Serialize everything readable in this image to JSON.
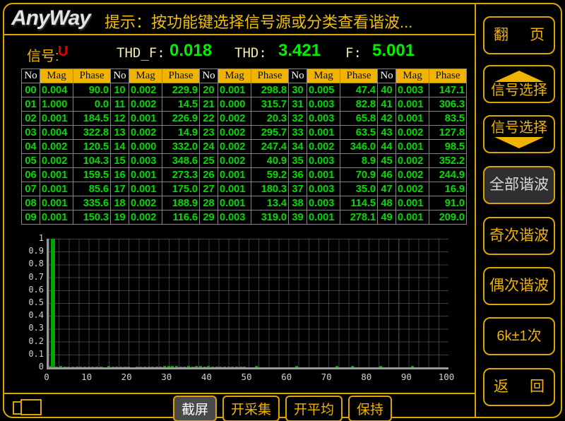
{
  "colors": {
    "accent_yellow": "#d9a606",
    "header_yellow": "#f0b400",
    "table_green": "#00dd00",
    "value_green": "#00ee00",
    "signal_red": "#dd0000",
    "selected_grey": "#2f2f2f",
    "bar_green": "#00a400"
  },
  "header": {
    "logo": "AnyWay",
    "hint": "提示：按功能键选择信号源或分类查看谐波..."
  },
  "signal": {
    "label": "信号:",
    "value": "U",
    "thdf_label": "THD_F:",
    "thdf_value": "0.018",
    "thd_label": "THD:",
    "thd_value": "3.421",
    "f_label": "F:",
    "f_value": "5.001"
  },
  "table": {
    "headers": [
      "No",
      "Mag",
      "Phase"
    ],
    "harmonics": [
      {
        "no": "00",
        "mag": "0.004",
        "phase": "90.0"
      },
      {
        "no": "01",
        "mag": "1.000",
        "phase": "0.0"
      },
      {
        "no": "02",
        "mag": "0.001",
        "phase": "184.5"
      },
      {
        "no": "03",
        "mag": "0.004",
        "phase": "322.8"
      },
      {
        "no": "04",
        "mag": "0.002",
        "phase": "120.5"
      },
      {
        "no": "05",
        "mag": "0.002",
        "phase": "104.3"
      },
      {
        "no": "06",
        "mag": "0.001",
        "phase": "159.5"
      },
      {
        "no": "07",
        "mag": "0.001",
        "phase": "85.6"
      },
      {
        "no": "08",
        "mag": "0.001",
        "phase": "335.6"
      },
      {
        "no": "09",
        "mag": "0.001",
        "phase": "150.3"
      },
      {
        "no": "10",
        "mag": "0.002",
        "phase": "229.9"
      },
      {
        "no": "11",
        "mag": "0.002",
        "phase": "14.5"
      },
      {
        "no": "12",
        "mag": "0.001",
        "phase": "226.9"
      },
      {
        "no": "13",
        "mag": "0.002",
        "phase": "14.9"
      },
      {
        "no": "14",
        "mag": "0.000",
        "phase": "332.0"
      },
      {
        "no": "15",
        "mag": "0.003",
        "phase": "348.6"
      },
      {
        "no": "16",
        "mag": "0.001",
        "phase": "273.3"
      },
      {
        "no": "17",
        "mag": "0.001",
        "phase": "175.0"
      },
      {
        "no": "18",
        "mag": "0.002",
        "phase": "188.9"
      },
      {
        "no": "19",
        "mag": "0.002",
        "phase": "116.6"
      },
      {
        "no": "20",
        "mag": "0.001",
        "phase": "298.8"
      },
      {
        "no": "21",
        "mag": "0.000",
        "phase": "315.7"
      },
      {
        "no": "22",
        "mag": "0.002",
        "phase": "20.3"
      },
      {
        "no": "23",
        "mag": "0.002",
        "phase": "295.7"
      },
      {
        "no": "24",
        "mag": "0.002",
        "phase": "247.4"
      },
      {
        "no": "25",
        "mag": "0.002",
        "phase": "40.9"
      },
      {
        "no": "26",
        "mag": "0.001",
        "phase": "59.2"
      },
      {
        "no": "27",
        "mag": "0.001",
        "phase": "180.3"
      },
      {
        "no": "28",
        "mag": "0.001",
        "phase": "13.4"
      },
      {
        "no": "29",
        "mag": "0.003",
        "phase": "319.0"
      },
      {
        "no": "30",
        "mag": "0.005",
        "phase": "47.4"
      },
      {
        "no": "31",
        "mag": "0.003",
        "phase": "82.8"
      },
      {
        "no": "32",
        "mag": "0.003",
        "phase": "65.8"
      },
      {
        "no": "33",
        "mag": "0.001",
        "phase": "63.5"
      },
      {
        "no": "34",
        "mag": "0.002",
        "phase": "346.0"
      },
      {
        "no": "35",
        "mag": "0.003",
        "phase": "8.9"
      },
      {
        "no": "36",
        "mag": "0.001",
        "phase": "70.9"
      },
      {
        "no": "37",
        "mag": "0.003",
        "phase": "35.0"
      },
      {
        "no": "38",
        "mag": "0.003",
        "phase": "114.5"
      },
      {
        "no": "39",
        "mag": "0.001",
        "phase": "278.1"
      },
      {
        "no": "40",
        "mag": "0.003",
        "phase": "147.1"
      },
      {
        "no": "41",
        "mag": "0.001",
        "phase": "306.3"
      },
      {
        "no": "42",
        "mag": "0.001",
        "phase": "83.5"
      },
      {
        "no": "43",
        "mag": "0.002",
        "phase": "127.8"
      },
      {
        "no": "44",
        "mag": "0.001",
        "phase": "98.5"
      },
      {
        "no": "45",
        "mag": "0.002",
        "phase": "352.2"
      },
      {
        "no": "46",
        "mag": "0.002",
        "phase": "244.9"
      },
      {
        "no": "47",
        "mag": "0.002",
        "phase": "16.9"
      },
      {
        "no": "48",
        "mag": "0.001",
        "phase": "91.0"
      },
      {
        "no": "49",
        "mag": "0.001",
        "phase": "209.0"
      }
    ]
  },
  "chart_data": {
    "type": "bar",
    "title": "",
    "xlabel": "",
    "ylabel": "",
    "xlim": [
      0,
      100
    ],
    "ylim": [
      0,
      1
    ],
    "xticks": [
      "0",
      "10",
      "20",
      "30",
      "40",
      "50",
      "60",
      "70",
      "80",
      "90",
      "100"
    ],
    "yticks": [
      "1",
      "0.9",
      "0.8",
      "0.7",
      "0.6",
      "0.5",
      "0.4",
      "0.3",
      "0.2",
      "0.1",
      "0"
    ],
    "x": [
      0,
      1,
      2,
      3,
      4,
      5,
      6,
      7,
      8,
      9,
      10,
      11,
      12,
      13,
      14,
      15,
      16,
      17,
      18,
      19,
      20,
      21,
      22,
      23,
      24,
      25,
      26,
      27,
      28,
      29,
      30,
      31,
      32,
      33,
      34,
      35,
      36,
      37,
      38,
      39,
      40,
      41,
      42,
      43,
      44,
      45,
      46,
      47,
      48,
      49
    ],
    "values": [
      0.004,
      1.0,
      0.001,
      0.004,
      0.002,
      0.002,
      0.001,
      0.001,
      0.001,
      0.001,
      0.002,
      0.002,
      0.001,
      0.002,
      0.0,
      0.003,
      0.001,
      0.001,
      0.002,
      0.002,
      0.001,
      0.0,
      0.002,
      0.002,
      0.002,
      0.002,
      0.001,
      0.001,
      0.001,
      0.003,
      0.005,
      0.003,
      0.003,
      0.001,
      0.002,
      0.003,
      0.001,
      0.003,
      0.003,
      0.001,
      0.003,
      0.001,
      0.001,
      0.002,
      0.001,
      0.002,
      0.002,
      0.002,
      0.001,
      0.001
    ],
    "extra_marks_x": [
      52,
      62,
      72,
      76,
      83,
      91
    ],
    "grid": true,
    "legend": false
  },
  "sidebar": {
    "buttons": [
      {
        "label": "翻 页",
        "chars": [
          "翻",
          "页"
        ]
      },
      {
        "label": "信号选择",
        "arrow": "up"
      },
      {
        "label": "信号选择",
        "arrow": "down"
      },
      {
        "label": "全部谐波",
        "selected": true
      },
      {
        "label": "奇次谐波"
      },
      {
        "label": "偶次谐波"
      },
      {
        "label": "6k±1次"
      },
      {
        "label": "返 回",
        "chars": [
          "返",
          "回"
        ]
      }
    ]
  },
  "footer": {
    "buttons": [
      {
        "label": "截屏",
        "active": true
      },
      {
        "label": "开采集",
        "active": false
      },
      {
        "label": "开平均",
        "active": false
      },
      {
        "label": "保持",
        "active": false
      }
    ]
  }
}
